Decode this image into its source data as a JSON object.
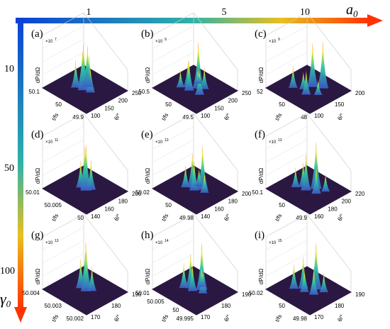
{
  "figure": {
    "top_axis_label": "a",
    "top_axis_subscript": "0",
    "left_axis_label": "γ",
    "left_axis_subscript": "0",
    "top_ticks": [
      "1",
      "5",
      "10"
    ],
    "left_ticks": [
      "10",
      "50",
      "100"
    ],
    "z_axis_label": "dP/dΩ",
    "x_axis_label": "t/fs",
    "y_axis_label": "θ/°"
  },
  "colors": {
    "surface_floor": "#2b1842",
    "arrow_gradient_start": "#0a3fd6",
    "arrow_gradient_end": "#ff3300",
    "peak_low": "#3b5dc9",
    "peak_mid": "#2ec4a0",
    "peak_high": "#f5e71c",
    "peak_top": "#e8402a"
  },
  "chart_data": [
    {
      "type": "surface3d",
      "panel": "(a)",
      "a0": 1,
      "gamma0": 10,
      "z_exponent": "7",
      "x_ticks": [
        "50.1",
        "50",
        "49.9"
      ],
      "y_ticks": [
        "100",
        "150",
        "200",
        "250"
      ],
      "peaks": [
        {
          "x": 0.36,
          "y": 0.42,
          "h": 0.55
        },
        {
          "x": 0.44,
          "y": 0.5,
          "h": 0.75
        },
        {
          "x": 0.5,
          "y": 0.46,
          "h": 0.95
        },
        {
          "x": 0.56,
          "y": 0.54,
          "h": 0.7
        },
        {
          "x": 0.62,
          "y": 0.5,
          "h": 0.5
        },
        {
          "x": 0.48,
          "y": 0.58,
          "h": 0.85
        }
      ]
    },
    {
      "type": "surface3d",
      "panel": "(b)",
      "a0": 5,
      "gamma0": 10,
      "z_exponent": "9",
      "x_ticks": [
        "50.5",
        "50",
        "49.5"
      ],
      "y_ticks": [
        "100",
        "150",
        "200",
        "250"
      ],
      "peaks": [
        {
          "x": 0.3,
          "y": 0.36,
          "h": 0.35
        },
        {
          "x": 0.38,
          "y": 0.46,
          "h": 0.55
        },
        {
          "x": 0.46,
          "y": 0.4,
          "h": 0.6
        },
        {
          "x": 0.52,
          "y": 0.56,
          "h": 0.95
        },
        {
          "x": 0.6,
          "y": 0.62,
          "h": 0.45
        },
        {
          "x": 0.66,
          "y": 0.44,
          "h": 0.5
        },
        {
          "x": 0.42,
          "y": 0.66,
          "h": 0.3
        }
      ]
    },
    {
      "type": "surface3d",
      "panel": "(c)",
      "a0": 10,
      "gamma0": 10,
      "z_exponent": "9",
      "x_ticks": [
        "52",
        "50",
        "48"
      ],
      "y_ticks": [
        "100",
        "150",
        "200"
      ],
      "peaks": [
        {
          "x": 0.3,
          "y": 0.34,
          "h": 0.45
        },
        {
          "x": 0.44,
          "y": 0.44,
          "h": 0.35
        },
        {
          "x": 0.5,
          "y": 0.6,
          "h": 0.9
        },
        {
          "x": 0.58,
          "y": 0.36,
          "h": 0.5
        },
        {
          "x": 0.64,
          "y": 0.7,
          "h": 0.95
        },
        {
          "x": 0.72,
          "y": 0.5,
          "h": 0.3
        }
      ]
    },
    {
      "type": "surface3d",
      "panel": "(d)",
      "a0": 1,
      "gamma0": 50,
      "z_exponent": "11",
      "x_ticks": [
        "50.01",
        "50.005",
        "50"
      ],
      "y_ticks": [
        "140",
        "160",
        "180",
        "200"
      ],
      "peaks": [
        {
          "x": 0.4,
          "y": 0.5,
          "h": 0.55
        },
        {
          "x": 0.46,
          "y": 0.54,
          "h": 0.85
        },
        {
          "x": 0.52,
          "y": 0.5,
          "h": 0.95
        },
        {
          "x": 0.56,
          "y": 0.58,
          "h": 0.6
        }
      ]
    },
    {
      "type": "surface3d",
      "panel": "(e)",
      "a0": 5,
      "gamma0": 50,
      "z_exponent": "13",
      "x_ticks": [
        "50.02",
        "50",
        "49.98"
      ],
      "y_ticks": [
        "140",
        "160",
        "180",
        "200"
      ],
      "peaks": [
        {
          "x": 0.34,
          "y": 0.44,
          "h": 0.45
        },
        {
          "x": 0.42,
          "y": 0.52,
          "h": 0.7
        },
        {
          "x": 0.5,
          "y": 0.48,
          "h": 0.6
        },
        {
          "x": 0.58,
          "y": 0.6,
          "h": 0.9
        },
        {
          "x": 0.66,
          "y": 0.56,
          "h": 0.4
        },
        {
          "x": 0.46,
          "y": 0.64,
          "h": 0.35
        }
      ]
    },
    {
      "type": "surface3d",
      "panel": "(f)",
      "a0": 10,
      "gamma0": 50,
      "z_exponent": "13",
      "x_ticks": [
        "50.1",
        "50",
        "49.9"
      ],
      "y_ticks": [
        "160",
        "180",
        "200",
        "220"
      ],
      "peaks": [
        {
          "x": 0.3,
          "y": 0.4,
          "h": 0.4
        },
        {
          "x": 0.38,
          "y": 0.5,
          "h": 0.5
        },
        {
          "x": 0.48,
          "y": 0.46,
          "h": 0.75
        },
        {
          "x": 0.56,
          "y": 0.62,
          "h": 0.95
        },
        {
          "x": 0.66,
          "y": 0.52,
          "h": 0.55
        },
        {
          "x": 0.72,
          "y": 0.68,
          "h": 0.35
        }
      ]
    },
    {
      "type": "surface3d",
      "panel": "(g)",
      "a0": 1,
      "gamma0": 100,
      "z_exponent": "13",
      "x_ticks": [
        "50.004",
        "50.003",
        "50.002"
      ],
      "y_ticks": [
        "170",
        "180",
        "190"
      ],
      "peaks": [
        {
          "x": 0.4,
          "y": 0.5,
          "h": 0.6
        },
        {
          "x": 0.46,
          "y": 0.56,
          "h": 0.95
        },
        {
          "x": 0.52,
          "y": 0.5,
          "h": 0.8
        },
        {
          "x": 0.58,
          "y": 0.58,
          "h": 0.5
        }
      ]
    },
    {
      "type": "surface3d",
      "panel": "(h)",
      "a0": 5,
      "gamma0": 100,
      "z_exponent": "14",
      "x_ticks": [
        "50.01",
        "50.005",
        "50",
        "49.995"
      ],
      "y_ticks": [
        "170",
        "180",
        "190"
      ],
      "peaks": [
        {
          "x": 0.32,
          "y": 0.42,
          "h": 0.5
        },
        {
          "x": 0.4,
          "y": 0.5,
          "h": 0.7
        },
        {
          "x": 0.48,
          "y": 0.46,
          "h": 0.55
        },
        {
          "x": 0.56,
          "y": 0.6,
          "h": 0.95
        },
        {
          "x": 0.64,
          "y": 0.54,
          "h": 0.45
        },
        {
          "x": 0.5,
          "y": 0.66,
          "h": 0.4
        }
      ]
    },
    {
      "type": "surface3d",
      "panel": "(i)",
      "a0": 10,
      "gamma0": 100,
      "z_exponent": "15",
      "x_ticks": [
        "50.02",
        "50",
        "49.98"
      ],
      "y_ticks": [
        "170",
        "180",
        "190"
      ],
      "peaks": [
        {
          "x": 0.3,
          "y": 0.36,
          "h": 0.5
        },
        {
          "x": 0.4,
          "y": 0.48,
          "h": 0.65
        },
        {
          "x": 0.48,
          "y": 0.42,
          "h": 0.45
        },
        {
          "x": 0.56,
          "y": 0.62,
          "h": 0.95
        },
        {
          "x": 0.64,
          "y": 0.48,
          "h": 0.55
        },
        {
          "x": 0.7,
          "y": 0.66,
          "h": 0.4
        }
      ]
    }
  ]
}
